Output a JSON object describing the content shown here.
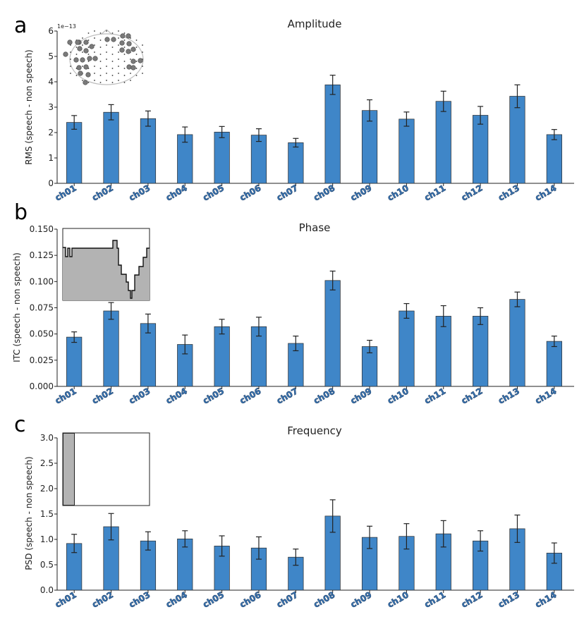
{
  "colors": {
    "bar": "#3f86c8",
    "bar_edge": "#2b2b2b",
    "inset_fill": "#b3b3b3",
    "xtick": "#3a78b8"
  },
  "panels": [
    {
      "letter": "a",
      "inset": "topomap"
    },
    {
      "letter": "b",
      "inset": "step-profile"
    },
    {
      "letter": "c",
      "inset": "frequency-band"
    }
  ],
  "chart_data": [
    {
      "type": "bar",
      "title": "Amplitude",
      "ylabel": "RMS (speech - non speech)",
      "offset_text": "1e−13",
      "ylim": [
        0,
        6
      ],
      "yticks": [
        "0",
        "1",
        "2",
        "3",
        "4",
        "5",
        "6"
      ],
      "categories": [
        "ch01",
        "ch02",
        "ch03",
        "ch04",
        "ch05",
        "ch06",
        "ch07",
        "ch08",
        "ch09",
        "ch10",
        "ch11",
        "ch12",
        "ch13",
        "ch14"
      ],
      "values": [
        2.4,
        2.8,
        2.55,
        1.92,
        2.02,
        1.9,
        1.6,
        3.88,
        2.87,
        2.53,
        3.23,
        2.68,
        3.43,
        1.92
      ],
      "errors": [
        0.27,
        0.3,
        0.3,
        0.3,
        0.22,
        0.25,
        0.17,
        0.38,
        0.42,
        0.28,
        0.4,
        0.35,
        0.45,
        0.2
      ]
    },
    {
      "type": "bar",
      "title": "Phase",
      "ylabel": "ITC (speech - non speech)",
      "ylim": [
        0,
        0.15
      ],
      "yticks": [
        "0.000",
        "0.025",
        "0.050",
        "0.075",
        "0.100",
        "0.125",
        "0.150"
      ],
      "categories": [
        "ch01",
        "ch02",
        "ch03",
        "ch04",
        "ch05",
        "ch06",
        "ch07",
        "ch08",
        "ch09",
        "ch10",
        "ch11",
        "ch12",
        "ch13",
        "ch14"
      ],
      "values": [
        0.047,
        0.072,
        0.06,
        0.04,
        0.057,
        0.057,
        0.041,
        0.101,
        0.038,
        0.072,
        0.067,
        0.067,
        0.083,
        0.043
      ],
      "errors": [
        0.005,
        0.008,
        0.009,
        0.009,
        0.007,
        0.009,
        0.007,
        0.009,
        0.006,
        0.007,
        0.01,
        0.008,
        0.007,
        0.005
      ]
    },
    {
      "type": "bar",
      "title": "Frequency",
      "ylabel": "PSD (speech - non speech)",
      "ylim": [
        0,
        3.0
      ],
      "yticks": [
        "0.0",
        "0.5",
        "1.0",
        "1.5",
        "2.0",
        "2.5",
        "3.0"
      ],
      "categories": [
        "ch01",
        "ch02",
        "ch03",
        "ch04",
        "ch05",
        "ch06",
        "ch07",
        "ch08",
        "ch09",
        "ch10",
        "ch11",
        "ch12",
        "ch13",
        "ch14"
      ],
      "values": [
        0.92,
        1.25,
        0.97,
        1.01,
        0.87,
        0.83,
        0.65,
        1.46,
        1.04,
        1.06,
        1.11,
        0.97,
        1.21,
        0.73
      ],
      "errors": [
        0.18,
        0.26,
        0.18,
        0.16,
        0.2,
        0.22,
        0.16,
        0.32,
        0.22,
        0.25,
        0.26,
        0.2,
        0.27,
        0.2
      ]
    }
  ]
}
